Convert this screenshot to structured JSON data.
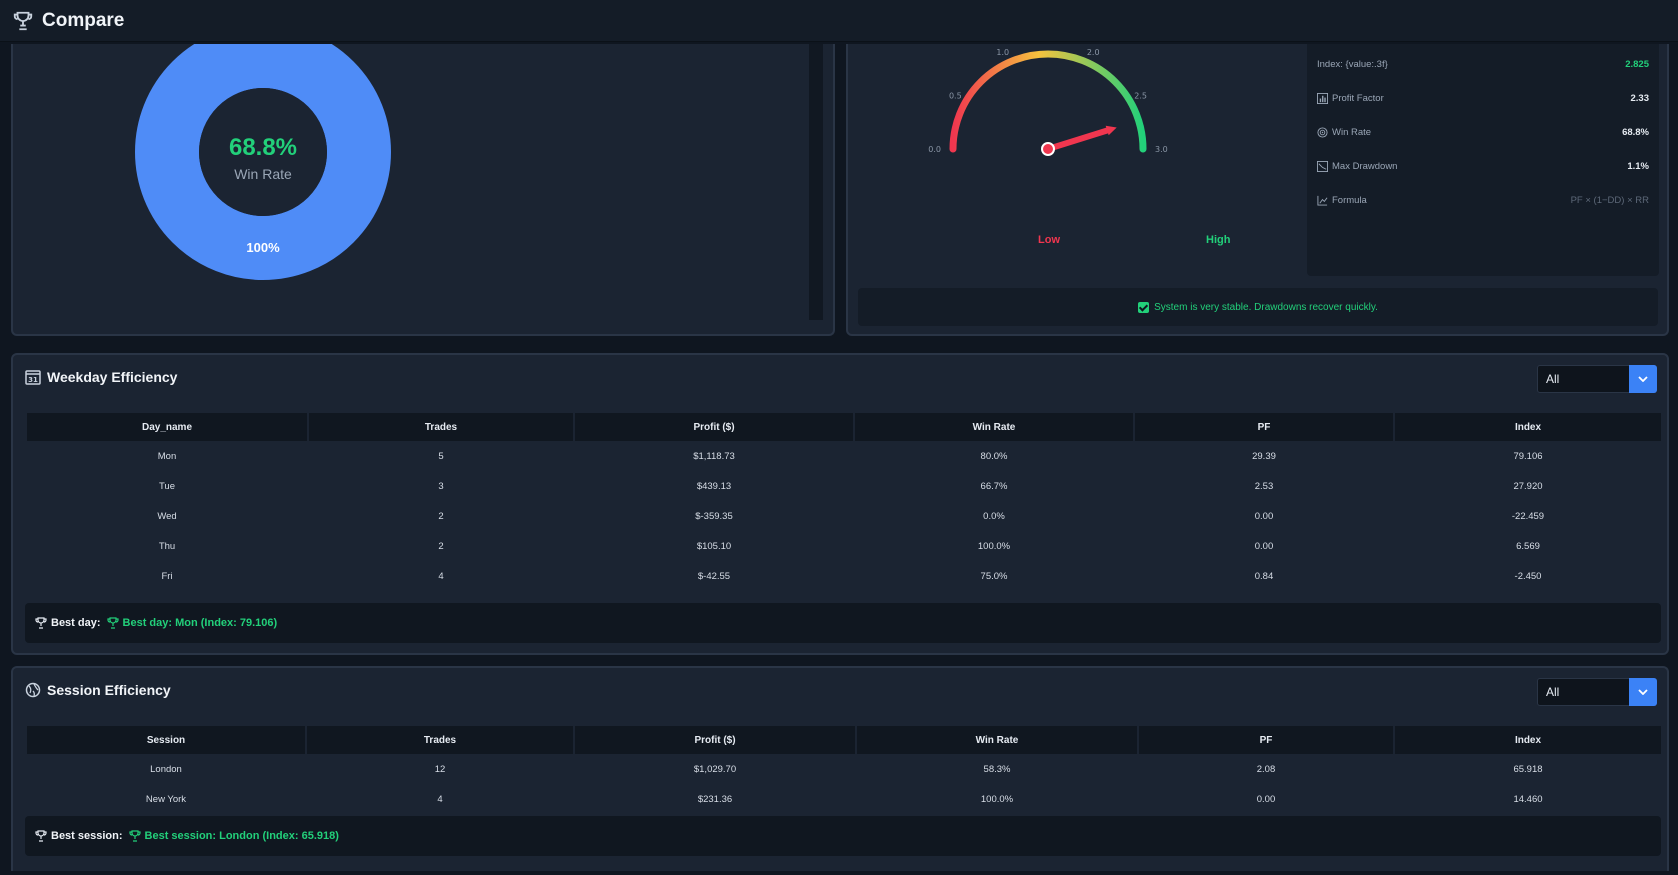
{
  "app": {
    "title": "Compare",
    "logo_icon": "trophy-icon"
  },
  "win_rate_chart": {
    "center_value": "68.8%",
    "center_label": "Win Rate",
    "slice_label": "100%",
    "slice_color": "#4f8cf7"
  },
  "gauge": {
    "ticks": [
      "0.0",
      "0.5",
      "1.0",
      "2.0",
      "2.5",
      "3.0"
    ],
    "value": 2.825,
    "min": 0,
    "max": 3,
    "low_label": "Low",
    "high_label": "High"
  },
  "metrics": [
    {
      "label": "Index: {value:.3f}",
      "value": "2.825",
      "icon": "",
      "style": "green"
    },
    {
      "label": "Profit Factor",
      "value": "2.33",
      "icon": "bar-chart-icon",
      "style": ""
    },
    {
      "label": "Win Rate",
      "value": "68.8%",
      "icon": "target-icon",
      "style": ""
    },
    {
      "label": "Max Drawdown",
      "value": "1.1%",
      "icon": "trend-down-icon",
      "style": ""
    },
    {
      "label": "Formula",
      "value": "PF × (1−DD) × RR",
      "icon": "chart-line-icon",
      "style": "muted"
    }
  ],
  "stability_message": "System is very stable. Drawdowns recover quickly.",
  "weekday": {
    "title": "Weekday Efficiency",
    "filter_value": "All",
    "columns": [
      "Day_name",
      "Trades",
      "Profit ($)",
      "Win Rate",
      "PF",
      "Index"
    ],
    "rows": [
      {
        "day": "Mon",
        "trades": "5",
        "profit": "$1,118.73",
        "win_rate": "80.0%",
        "pf": "29.39",
        "index": "79.106",
        "sign": "pos"
      },
      {
        "day": "Tue",
        "trades": "3",
        "profit": "$439.13",
        "win_rate": "66.7%",
        "pf": "2.53",
        "index": "27.920",
        "sign": "pos"
      },
      {
        "day": "Wed",
        "trades": "2",
        "profit": "$-359.35",
        "win_rate": "0.0%",
        "pf": "0.00",
        "index": "-22.459",
        "sign": "neg"
      },
      {
        "day": "Thu",
        "trades": "2",
        "profit": "$105.10",
        "win_rate": "100.0%",
        "pf": "0.00",
        "index": "6.569",
        "sign": "pos"
      },
      {
        "day": "Fri",
        "trades": "4",
        "profit": "$-42.55",
        "win_rate": "75.0%",
        "pf": "0.84",
        "index": "-2.450",
        "sign": "neg"
      }
    ],
    "best_label": "Best day:",
    "best_value": "Best day: Mon (Index: 79.106)"
  },
  "session": {
    "title": "Session Efficiency",
    "filter_value": "All",
    "columns": [
      "Session",
      "Trades",
      "Profit ($)",
      "Win Rate",
      "PF",
      "Index"
    ],
    "rows": [
      {
        "day": "London",
        "trades": "12",
        "profit": "$1,029.70",
        "win_rate": "58.3%",
        "pf": "2.08",
        "index": "65.918",
        "sign": "pos"
      },
      {
        "day": "New York",
        "trades": "4",
        "profit": "$231.36",
        "win_rate": "100.0%",
        "pf": "0.00",
        "index": "14.460",
        "sign": "pos"
      }
    ],
    "best_label": "Best session:",
    "best_value": "Best session: London (Index: 65.918)"
  }
}
